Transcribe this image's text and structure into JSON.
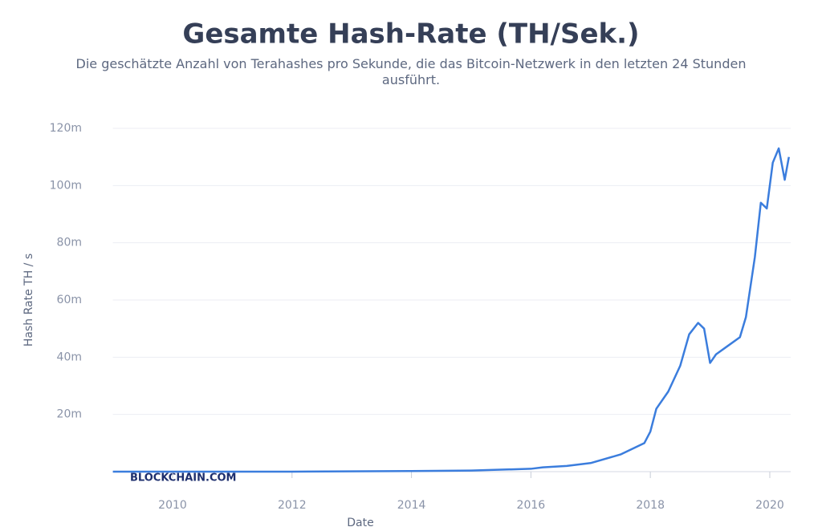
{
  "chart_data": {
    "type": "line",
    "title": "Gesamte Hash-Rate (TH/Sek.)",
    "subtitle": "Die geschätzte Anzahl von Terahashes pro Sekunde, die das Bitcoin-Netzwerk in den letzten 24 Stunden ausführt.",
    "watermark": "BLOCKCHAIN.COM",
    "x_label": "Date",
    "y_label": "Hash Rate TH / s",
    "x": [
      2009,
      2012,
      2014,
      2015,
      2016,
      2016.2,
      2016.6,
      2017,
      2017.5,
      2017.9,
      2018,
      2018.1,
      2018.3,
      2018.5,
      2018.65,
      2018.8,
      2018.9,
      2019,
      2019.1,
      2019.3,
      2019.5,
      2019.6,
      2019.75,
      2019.85,
      2019.95,
      2020.05,
      2020.15,
      2020.25,
      2020.32
    ],
    "series": [
      {
        "name": "Hash Rate",
        "color": "#3b7ddd",
        "values": [
          0,
          10000,
          200000,
          400000,
          1000000,
          1500000,
          2000000,
          3000000,
          6000000,
          10000000,
          14000000,
          22000000,
          28000000,
          37000000,
          48000000,
          52000000,
          50000000,
          38000000,
          41000000,
          44000000,
          47000000,
          54000000,
          75000000,
          94000000,
          92000000,
          108000000,
          113000000,
          102000000,
          110000000
        ]
      }
    ],
    "xlim": [
      2009,
      2020.35
    ],
    "xticks": [
      2010,
      2012,
      2014,
      2016,
      2018,
      2020
    ],
    "ylim": [
      0,
      120000000
    ],
    "yticks": [
      {
        "value": 20000000,
        "label": "20m"
      },
      {
        "value": 40000000,
        "label": "40m"
      },
      {
        "value": 60000000,
        "label": "60m"
      },
      {
        "value": 80000000,
        "label": "80m"
      },
      {
        "value": 100000000,
        "label": "100m"
      },
      {
        "value": 120000000,
        "label": "120m"
      }
    ],
    "grid": true
  }
}
